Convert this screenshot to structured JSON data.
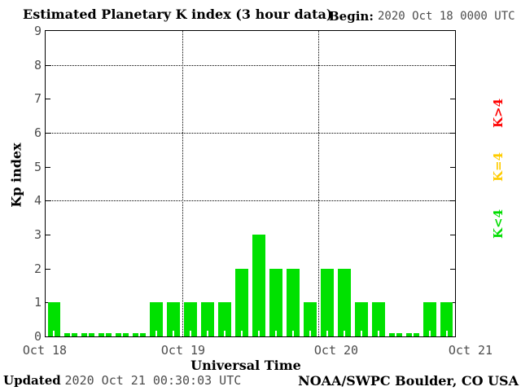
{
  "header": {
    "title": "Estimated Planetary K index (3 hour data)",
    "begin_label": "Begin:",
    "begin_value": "2020 Oct 18 0000 UTC"
  },
  "chart_data": {
    "type": "bar",
    "title": "Estimated Planetary K index (3 hour data)",
    "begin": "2020 Oct 18 0000 UTC",
    "xlabel": "Universal Time",
    "ylabel": "Kp index",
    "ylim": [
      0,
      9
    ],
    "yticks": [
      0,
      1,
      2,
      3,
      4,
      5,
      6,
      7,
      8,
      9
    ],
    "dotted_y_gridlines": [
      4,
      6,
      8
    ],
    "day_labels": [
      "Oct 18",
      "Oct 19",
      "Oct 20",
      "Oct 21"
    ],
    "bars_per_day": 8,
    "values": [
      1,
      0,
      0,
      0,
      0,
      0,
      1,
      1,
      1,
      1,
      1,
      2,
      3,
      2,
      2,
      1,
      2,
      2,
      1,
      1,
      0,
      0,
      1,
      1
    ],
    "bar_color": "#00e100",
    "grid_on": true,
    "legend_position": "right",
    "legend": [
      {
        "label": "K>4",
        "color": "#ff0000"
      },
      {
        "label": "K=4",
        "color": "#ffcc00"
      },
      {
        "label": "K<4",
        "color": "#00dd00"
      }
    ]
  },
  "footer": {
    "updated_label": "Updated",
    "updated_value": "2020 Oct 21 00:30:03 UTC",
    "credit": "NOAA/SWPC Boulder, CO USA"
  }
}
